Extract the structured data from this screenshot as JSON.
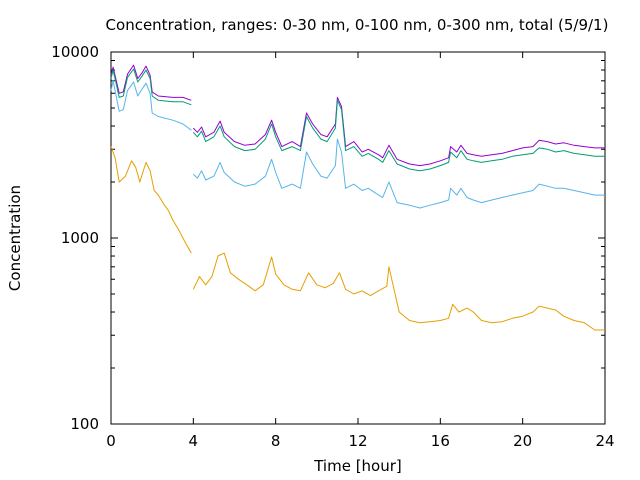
{
  "chart_data": {
    "type": "line",
    "title": "Concentration, ranges: 0-30 nm, 0-100 nm, 0-300 nm, total (5/9/1)",
    "xlabel": "Time [hour]",
    "ylabel": "Concentration",
    "xlim": [
      0,
      24
    ],
    "ylim": [
      100,
      10000
    ],
    "yscale": "log",
    "grid": false,
    "legend": "none",
    "xticks": [
      "0",
      "4",
      "8",
      "12",
      "16",
      "20",
      "24"
    ],
    "yticks": [
      "100",
      "1000",
      "10000"
    ],
    "series": [
      {
        "color": "#9400d3",
        "points": [
          [
            0,
            7500
          ],
          [
            0.1,
            8300
          ],
          [
            0.4,
            6000
          ],
          [
            0.6,
            6100
          ],
          [
            0.8,
            7600
          ],
          [
            1.1,
            8500
          ],
          [
            1.3,
            7200
          ],
          [
            1.5,
            7700
          ],
          [
            1.7,
            8400
          ],
          [
            1.9,
            7500
          ],
          [
            2.0,
            6100
          ],
          [
            2.3,
            5800
          ],
          [
            3.0,
            5700
          ],
          [
            3.5,
            5700
          ],
          [
            3.9,
            5500
          ],
          null,
          [
            4.0,
            3900
          ],
          [
            4.2,
            3700
          ],
          [
            4.4,
            3950
          ],
          [
            4.6,
            3500
          ],
          [
            5.0,
            3700
          ],
          [
            5.3,
            4250
          ],
          [
            5.5,
            3700
          ],
          [
            6.0,
            3300
          ],
          [
            6.5,
            3150
          ],
          [
            7.0,
            3200
          ],
          [
            7.5,
            3600
          ],
          [
            7.8,
            4300
          ],
          [
            8.0,
            3700
          ],
          [
            8.3,
            3100
          ],
          [
            8.8,
            3300
          ],
          [
            9.2,
            3100
          ],
          [
            9.5,
            4700
          ],
          [
            9.8,
            4100
          ],
          [
            10.2,
            3600
          ],
          [
            10.5,
            3500
          ],
          [
            10.9,
            4100
          ],
          [
            11.0,
            5700
          ],
          [
            11.2,
            5100
          ],
          [
            11.4,
            3100
          ],
          [
            11.8,
            3300
          ],
          [
            12.2,
            2900
          ],
          [
            12.5,
            3000
          ],
          [
            13.0,
            2800
          ],
          [
            13.2,
            2700
          ],
          [
            13.5,
            3150
          ],
          [
            13.9,
            2650
          ],
          [
            14.5,
            2500
          ],
          [
            15.0,
            2450
          ],
          [
            15.5,
            2500
          ],
          [
            16.0,
            2600
          ],
          [
            16.4,
            2700
          ],
          [
            16.5,
            3100
          ],
          [
            16.8,
            2900
          ],
          [
            17.0,
            3150
          ],
          [
            17.3,
            2850
          ],
          [
            17.6,
            2800
          ],
          [
            18.0,
            2750
          ],
          [
            18.5,
            2800
          ],
          [
            19.0,
            2850
          ],
          [
            19.5,
            2950
          ],
          [
            20.0,
            3050
          ],
          [
            20.5,
            3100
          ],
          [
            20.8,
            3350
          ],
          [
            21.2,
            3300
          ],
          [
            21.6,
            3200
          ],
          [
            22.0,
            3250
          ],
          [
            22.5,
            3150
          ],
          [
            23.0,
            3100
          ],
          [
            23.5,
            3050
          ],
          [
            24.0,
            3050
          ]
        ]
      },
      {
        "color": "#009e73",
        "points": [
          [
            0,
            7200
          ],
          [
            0.1,
            8000
          ],
          [
            0.4,
            5700
          ],
          [
            0.6,
            5800
          ],
          [
            0.8,
            7300
          ],
          [
            1.1,
            8100
          ],
          [
            1.3,
            6900
          ],
          [
            1.5,
            7400
          ],
          [
            1.7,
            8000
          ],
          [
            1.9,
            7200
          ],
          [
            2.0,
            5800
          ],
          [
            2.3,
            5500
          ],
          [
            3.0,
            5400
          ],
          [
            3.5,
            5400
          ],
          [
            3.9,
            5200
          ],
          null,
          [
            4.0,
            3700
          ],
          [
            4.2,
            3500
          ],
          [
            4.4,
            3750
          ],
          [
            4.6,
            3300
          ],
          [
            5.0,
            3500
          ],
          [
            5.3,
            4000
          ],
          [
            5.5,
            3500
          ],
          [
            6.0,
            3100
          ],
          [
            6.5,
            2950
          ],
          [
            7.0,
            3000
          ],
          [
            7.5,
            3400
          ],
          [
            7.8,
            4100
          ],
          [
            8.0,
            3500
          ],
          [
            8.3,
            2950
          ],
          [
            8.8,
            3100
          ],
          [
            9.2,
            2950
          ],
          [
            9.5,
            4500
          ],
          [
            9.8,
            3900
          ],
          [
            10.2,
            3400
          ],
          [
            10.5,
            3300
          ],
          [
            10.9,
            3900
          ],
          [
            11.0,
            5500
          ],
          [
            11.2,
            4900
          ],
          [
            11.4,
            2950
          ],
          [
            11.8,
            3100
          ],
          [
            12.2,
            2750
          ],
          [
            12.5,
            2850
          ],
          [
            13.0,
            2650
          ],
          [
            13.2,
            2550
          ],
          [
            13.5,
            2950
          ],
          [
            13.9,
            2500
          ],
          [
            14.5,
            2350
          ],
          [
            15.0,
            2300
          ],
          [
            15.5,
            2350
          ],
          [
            16.0,
            2450
          ],
          [
            16.4,
            2550
          ],
          [
            16.5,
            2900
          ],
          [
            16.8,
            2700
          ],
          [
            17.0,
            2950
          ],
          [
            17.3,
            2650
          ],
          [
            17.6,
            2600
          ],
          [
            18.0,
            2550
          ],
          [
            18.5,
            2600
          ],
          [
            19.0,
            2650
          ],
          [
            19.5,
            2750
          ],
          [
            20.0,
            2800
          ],
          [
            20.5,
            2850
          ],
          [
            20.8,
            3050
          ],
          [
            21.2,
            3000
          ],
          [
            21.6,
            2900
          ],
          [
            22.0,
            2950
          ],
          [
            22.5,
            2850
          ],
          [
            23.0,
            2800
          ],
          [
            23.5,
            2750
          ],
          [
            24.0,
            2750
          ]
        ]
      },
      {
        "color": "#56b4e9",
        "points": [
          [
            0,
            6200
          ],
          [
            0.1,
            7000
          ],
          [
            0.4,
            4800
          ],
          [
            0.6,
            4900
          ],
          [
            0.8,
            6200
          ],
          [
            1.1,
            6900
          ],
          [
            1.3,
            5800
          ],
          [
            1.5,
            6300
          ],
          [
            1.7,
            6800
          ],
          [
            1.9,
            6000
          ],
          [
            2.0,
            4700
          ],
          [
            2.3,
            4500
          ],
          [
            3.0,
            4300
          ],
          [
            3.5,
            4100
          ],
          [
            3.9,
            3800
          ],
          null,
          [
            4.0,
            2200
          ],
          [
            4.2,
            2100
          ],
          [
            4.4,
            2300
          ],
          [
            4.6,
            2050
          ],
          [
            5.0,
            2150
          ],
          [
            5.3,
            2550
          ],
          [
            5.5,
            2250
          ],
          [
            6.0,
            2000
          ],
          [
            6.5,
            1900
          ],
          [
            7.0,
            1950
          ],
          [
            7.5,
            2150
          ],
          [
            7.8,
            2650
          ],
          [
            8.0,
            2250
          ],
          [
            8.3,
            1850
          ],
          [
            8.8,
            1950
          ],
          [
            9.2,
            1850
          ],
          [
            9.5,
            2900
          ],
          [
            9.8,
            2500
          ],
          [
            10.2,
            2150
          ],
          [
            10.5,
            2100
          ],
          [
            10.9,
            2450
          ],
          [
            11.0,
            3400
          ],
          [
            11.2,
            2900
          ],
          [
            11.4,
            1850
          ],
          [
            11.8,
            1950
          ],
          [
            12.2,
            1800
          ],
          [
            12.5,
            1850
          ],
          [
            13.0,
            1700
          ],
          [
            13.2,
            1650
          ],
          [
            13.5,
            2000
          ],
          [
            13.9,
            1550
          ],
          [
            14.5,
            1500
          ],
          [
            15.0,
            1450
          ],
          [
            15.5,
            1500
          ],
          [
            16.0,
            1550
          ],
          [
            16.4,
            1600
          ],
          [
            16.5,
            1850
          ],
          [
            16.8,
            1700
          ],
          [
            17.0,
            1850
          ],
          [
            17.3,
            1650
          ],
          [
            17.6,
            1600
          ],
          [
            18.0,
            1550
          ],
          [
            18.5,
            1600
          ],
          [
            19.0,
            1650
          ],
          [
            19.5,
            1700
          ],
          [
            20.0,
            1750
          ],
          [
            20.5,
            1800
          ],
          [
            20.8,
            1950
          ],
          [
            21.2,
            1900
          ],
          [
            21.6,
            1850
          ],
          [
            22.0,
            1850
          ],
          [
            22.5,
            1800
          ],
          [
            23.0,
            1750
          ],
          [
            23.5,
            1700
          ],
          [
            24.0,
            1700
          ]
        ]
      },
      {
        "color": "#e69f00",
        "points": [
          [
            0,
            3100
          ],
          [
            0.2,
            2700
          ],
          [
            0.4,
            2000
          ],
          [
            0.7,
            2150
          ],
          [
            1.0,
            2600
          ],
          [
            1.2,
            2400
          ],
          [
            1.4,
            2000
          ],
          [
            1.7,
            2550
          ],
          [
            1.9,
            2300
          ],
          [
            2.1,
            1800
          ],
          [
            2.3,
            1700
          ],
          [
            2.6,
            1500
          ],
          [
            2.8,
            1400
          ],
          [
            3.0,
            1250
          ],
          [
            3.3,
            1100
          ],
          [
            3.6,
            950
          ],
          [
            3.9,
            830
          ],
          null,
          [
            4.0,
            530
          ],
          [
            4.3,
            620
          ],
          [
            4.6,
            560
          ],
          [
            4.9,
            620
          ],
          [
            5.2,
            800
          ],
          [
            5.5,
            830
          ],
          [
            5.8,
            650
          ],
          [
            6.2,
            600
          ],
          [
            6.6,
            560
          ],
          [
            7.0,
            520
          ],
          [
            7.4,
            560
          ],
          [
            7.8,
            790
          ],
          [
            8.0,
            640
          ],
          [
            8.4,
            560
          ],
          [
            8.8,
            530
          ],
          [
            9.2,
            520
          ],
          [
            9.6,
            650
          ],
          [
            10.0,
            560
          ],
          [
            10.4,
            540
          ],
          [
            10.8,
            570
          ],
          [
            11.1,
            650
          ],
          [
            11.4,
            530
          ],
          [
            11.8,
            500
          ],
          [
            12.2,
            520
          ],
          [
            12.6,
            490
          ],
          [
            13.0,
            520
          ],
          [
            13.4,
            550
          ],
          [
            13.5,
            700
          ],
          [
            13.7,
            560
          ],
          [
            14.0,
            400
          ],
          [
            14.5,
            360
          ],
          [
            15.0,
            350
          ],
          [
            15.5,
            355
          ],
          [
            16.0,
            360
          ],
          [
            16.4,
            370
          ],
          [
            16.6,
            440
          ],
          [
            16.9,
            400
          ],
          [
            17.3,
            420
          ],
          [
            17.6,
            400
          ],
          [
            18.0,
            360
          ],
          [
            18.5,
            350
          ],
          [
            19.0,
            355
          ],
          [
            19.5,
            370
          ],
          [
            20.0,
            380
          ],
          [
            20.5,
            400
          ],
          [
            20.8,
            430
          ],
          [
            21.2,
            420
          ],
          [
            21.6,
            410
          ],
          [
            22.0,
            380
          ],
          [
            22.5,
            360
          ],
          [
            23.0,
            350
          ],
          [
            23.5,
            320
          ],
          [
            24.0,
            320
          ]
        ]
      }
    ]
  }
}
